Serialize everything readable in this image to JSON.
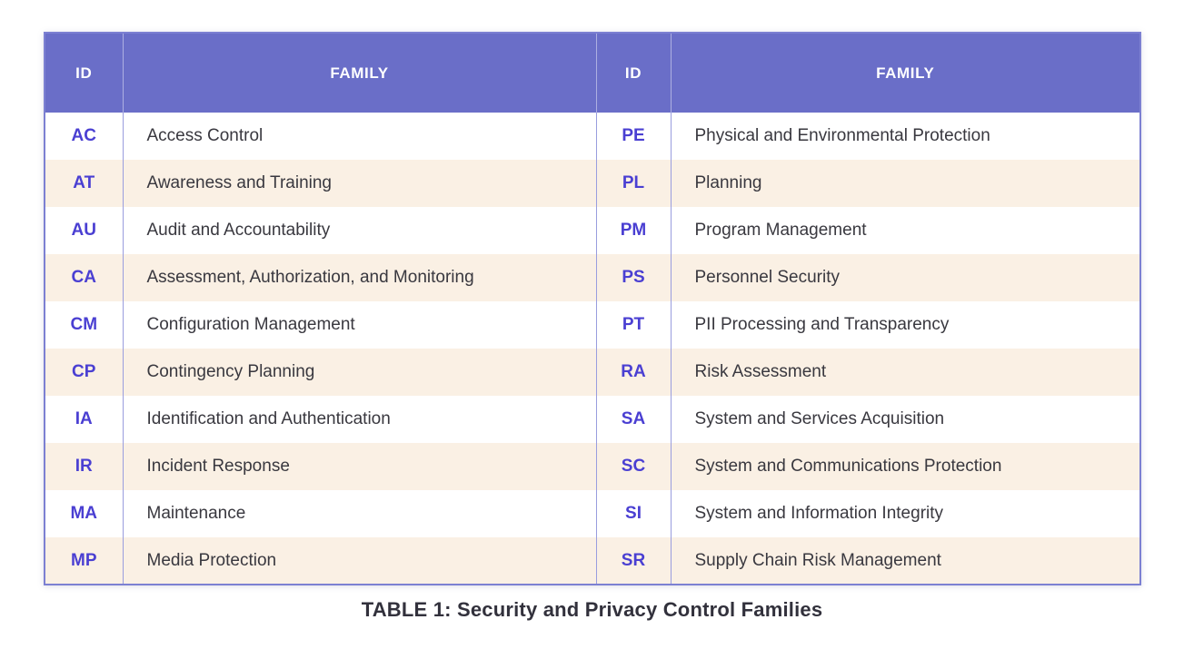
{
  "colors": {
    "header_bg": "#6a6ec8",
    "header_text": "#ffffff",
    "id_text": "#4a3fd2",
    "body_text": "#39383f",
    "zebra_cream": "#faf0e4",
    "zebra_white": "#ffffff",
    "grid_line": "#999dde",
    "outer_border": "#7c80d2",
    "caption_text": "#32313c"
  },
  "table": {
    "caption": "TABLE 1: Security and Privacy Control Families",
    "headers": {
      "id_left": "ID",
      "family_left": "FAMILY",
      "id_right": "ID",
      "family_right": "FAMILY"
    },
    "left_rows": [
      {
        "id": "AC",
        "family": "Access Control"
      },
      {
        "id": "AT",
        "family": "Awareness and Training"
      },
      {
        "id": "AU",
        "family": "Audit and Accountability"
      },
      {
        "id": "CA",
        "family": "Assessment, Authorization, and Monitoring"
      },
      {
        "id": "CM",
        "family": "Configuration Management"
      },
      {
        "id": "CP",
        "family": "Contingency Planning"
      },
      {
        "id": "IA",
        "family": "Identification and Authentication"
      },
      {
        "id": "IR",
        "family": "Incident Response"
      },
      {
        "id": "MA",
        "family": "Maintenance"
      },
      {
        "id": "MP",
        "family": "Media Protection"
      }
    ],
    "right_rows": [
      {
        "id": "PE",
        "family": "Physical and Environmental Protection"
      },
      {
        "id": "PL",
        "family": "Planning"
      },
      {
        "id": "PM",
        "family": "Program Management"
      },
      {
        "id": "PS",
        "family": "Personnel Security"
      },
      {
        "id": "PT",
        "family": "PII Processing and Transparency"
      },
      {
        "id": "RA",
        "family": "Risk Assessment"
      },
      {
        "id": "SA",
        "family": "System and Services Acquisition"
      },
      {
        "id": "SC",
        "family": "System and Communications Protection"
      },
      {
        "id": "SI",
        "family": "System and Information Integrity"
      },
      {
        "id": "SR",
        "family": "Supply Chain Risk Management"
      }
    ]
  }
}
